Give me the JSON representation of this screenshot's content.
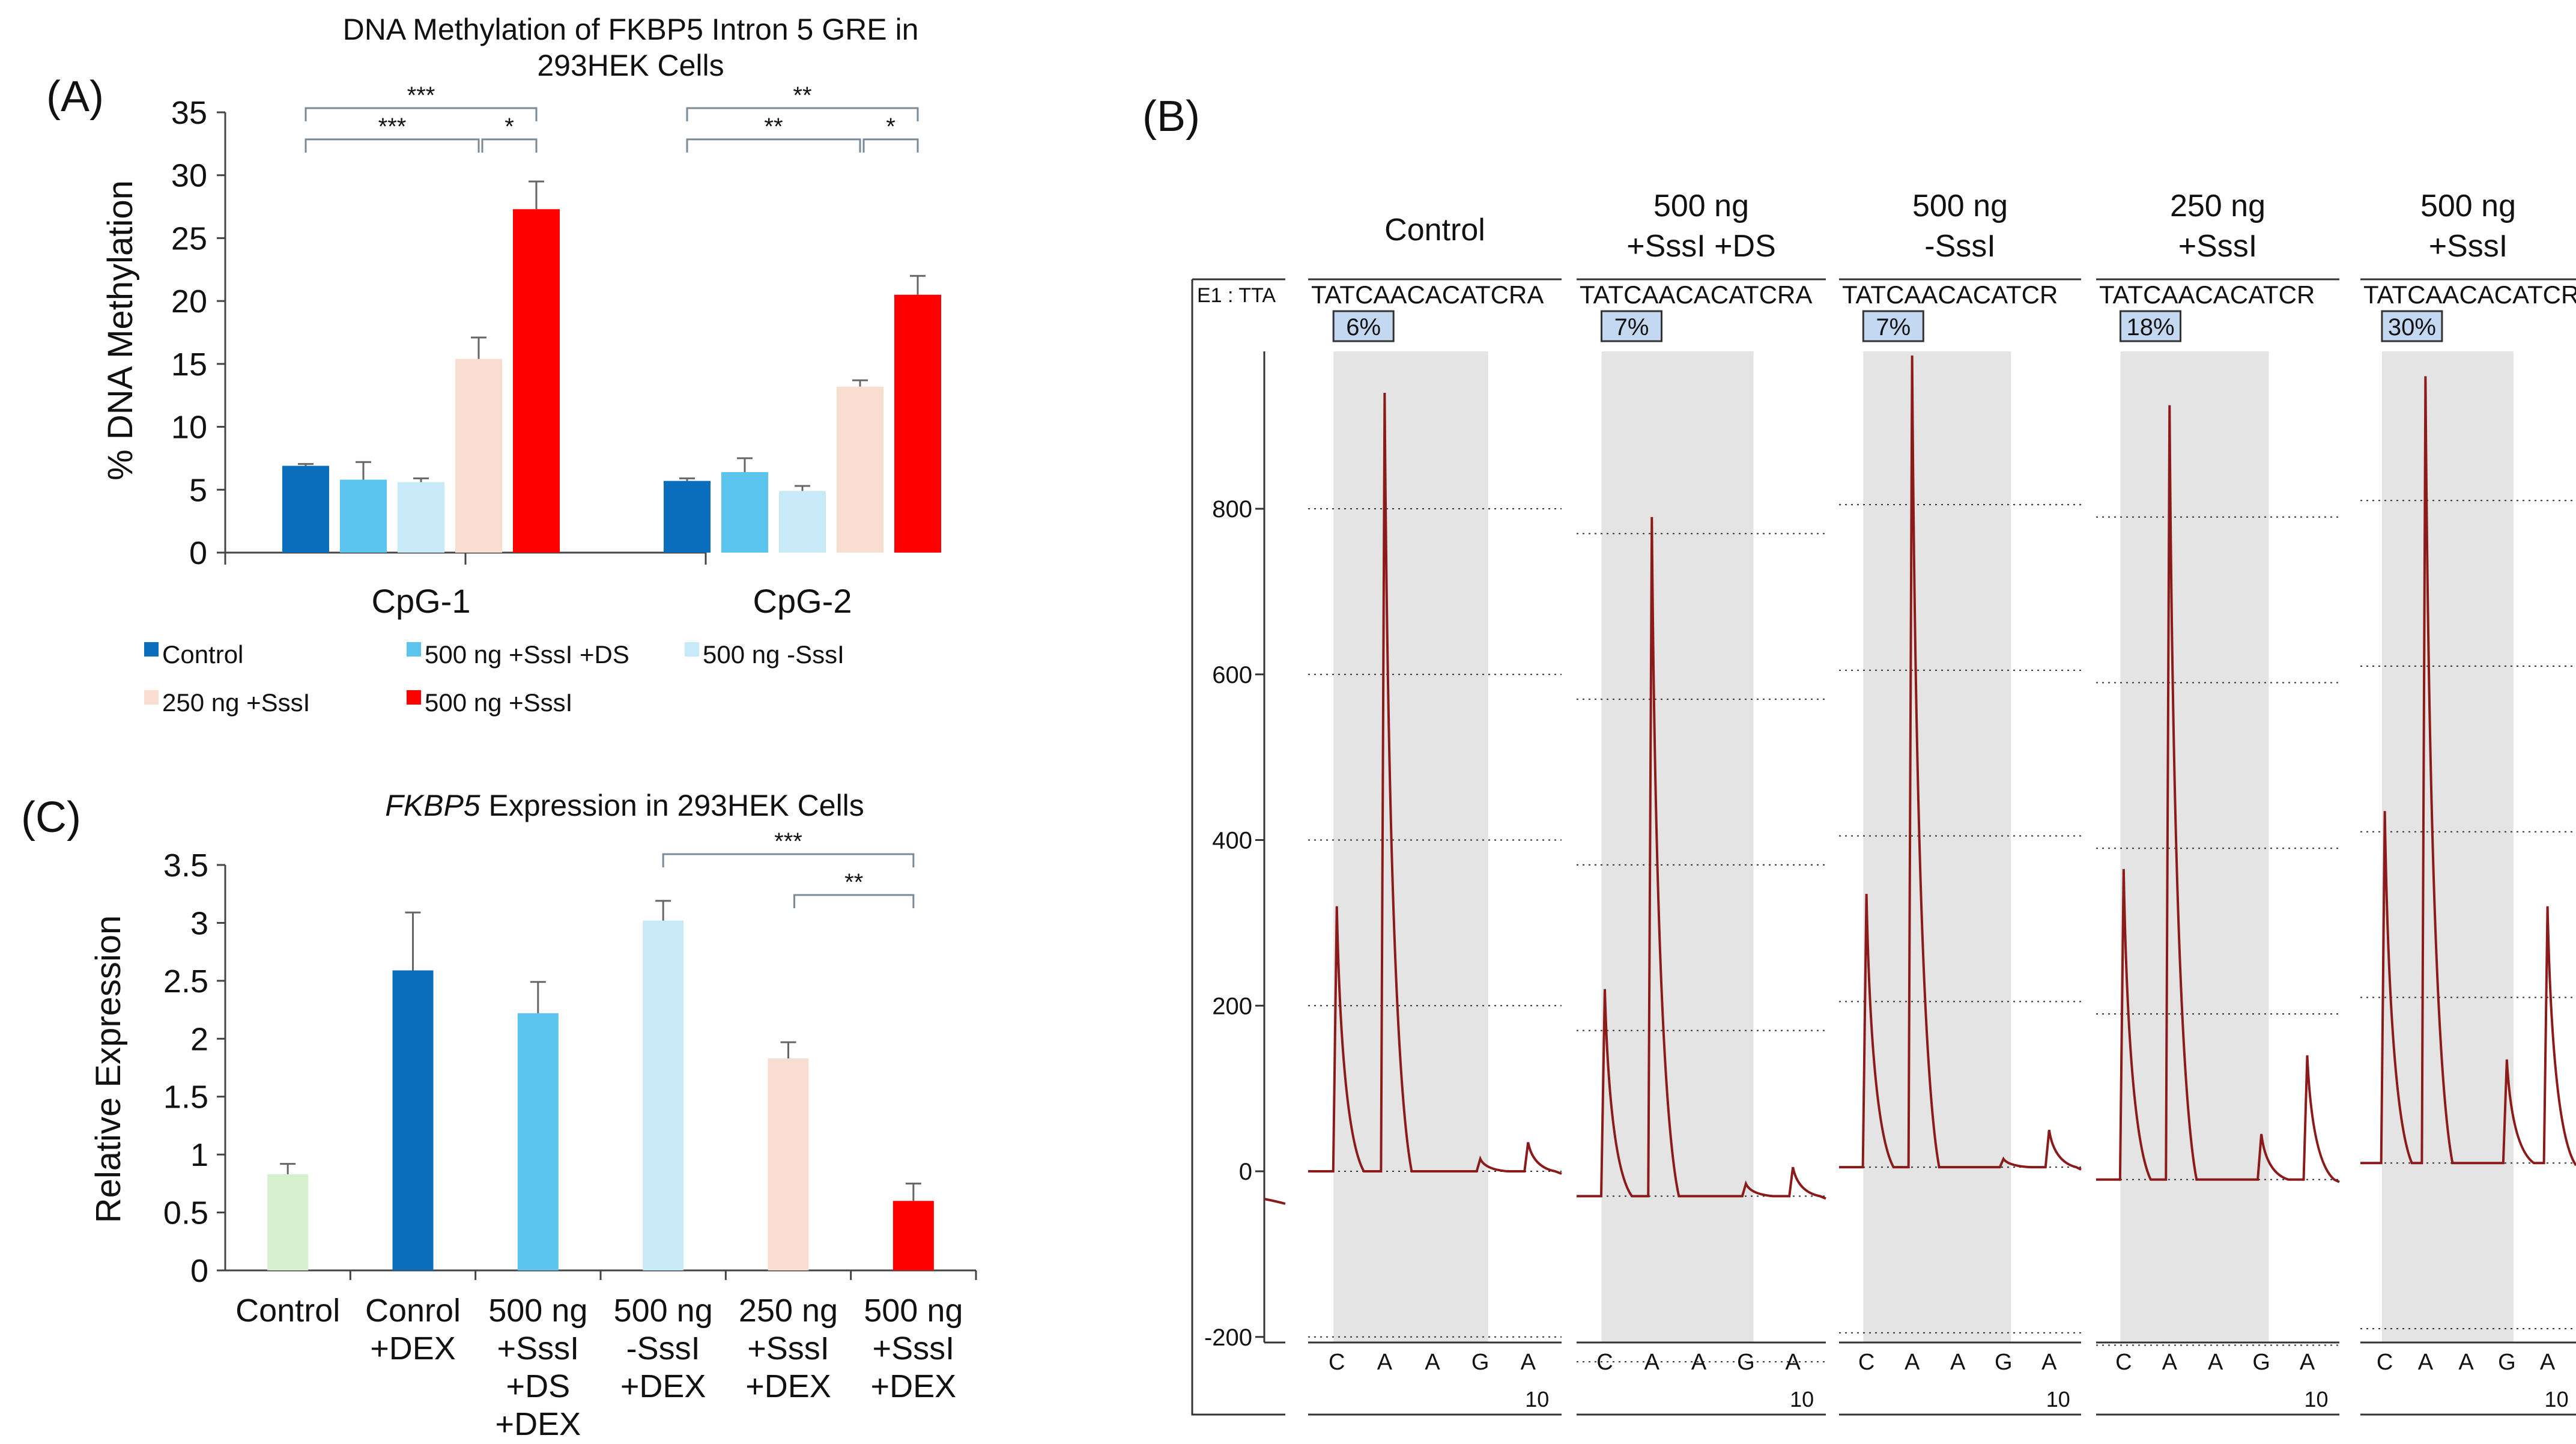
{
  "colors": {
    "control": "#0A6EBD",
    "sssi_ds": "#5BC5F0",
    "minus_sssi": "#C8EAF8",
    "ng250": "#F8DDD0",
    "ng500": "#FF0000",
    "ctrl_c": "#D5EFCF",
    "trace": "#8B1A1A",
    "shade": "#E4E4E4",
    "pct_box": "#C5D8F2"
  },
  "chart_data": [
    {
      "id": "A",
      "type": "bar",
      "panel_label": "(A)",
      "title_line1": "DNA Methylation of FKBP5 Intron 5 GRE in",
      "title_line2": "293HEK Cells",
      "ylabel": "% DNA Methylation",
      "ylim": [
        0,
        35
      ],
      "yticks": [
        "0",
        "5",
        "10",
        "15",
        "20",
        "25",
        "30",
        "35"
      ],
      "categories": [
        "CpG-1",
        "CpG-2"
      ],
      "series": [
        {
          "name": "Control",
          "color_key": "control",
          "values": [
            6.9,
            5.7
          ],
          "errors": [
            0.15,
            0.2
          ]
        },
        {
          "name": "500 ng +SssI +DS",
          "color_key": "sssi_ds",
          "values": [
            5.8,
            6.4
          ],
          "errors": [
            1.4,
            1.1
          ]
        },
        {
          "name": "500 ng -SssI",
          "color_key": "minus_sssi",
          "values": [
            5.6,
            4.9
          ],
          "errors": [
            0.3,
            0.4
          ]
        },
        {
          "name": "250 ng +SssI",
          "color_key": "ng250",
          "values": [
            15.4,
            13.2
          ],
          "errors": [
            1.7,
            0.5
          ]
        },
        {
          "name": "500 ng +SssI",
          "color_key": "ng500",
          "values": [
            27.3,
            20.5
          ],
          "errors": [
            2.2,
            1.5
          ]
        }
      ],
      "significance": [
        "***",
        "***",
        "*",
        "**",
        "**",
        "*"
      ]
    },
    {
      "id": "C",
      "type": "bar",
      "panel_label": "(C)",
      "title_italic": "FKBP5",
      "title_rest": " Expression in 293HEK Cells",
      "ylabel": "Relative Expression",
      "ylim": [
        0,
        3.5
      ],
      "yticks": [
        "0",
        "0.5",
        "1",
        "1.5",
        "2",
        "2.5",
        "3",
        "3.5"
      ],
      "categories": [
        [
          "Control"
        ],
        [
          "Conrol",
          "+DEX"
        ],
        [
          "500 ng",
          "+SssI",
          "+DS",
          "+DEX"
        ],
        [
          "500 ng",
          "-SssI",
          "+DEX"
        ],
        [
          "250 ng",
          "+SssI",
          "+DEX"
        ],
        [
          "500 ng",
          "+SssI",
          "+DEX"
        ]
      ],
      "color_keys": [
        "ctrl_c",
        "control",
        "sssi_ds",
        "minus_sssi",
        "ng250",
        "ng500"
      ],
      "values": [
        0.83,
        2.59,
        2.22,
        3.02,
        1.83,
        0.6
      ],
      "errors": [
        0.09,
        0.5,
        0.27,
        0.17,
        0.14,
        0.15
      ],
      "significance": [
        "***",
        "**"
      ]
    },
    {
      "id": "B",
      "type": "line",
      "panel_label": "(B)",
      "axis_header": "E1 : TTA",
      "ylim": [
        -200,
        1000
      ],
      "yticks": [
        "-200",
        "0",
        "200",
        "400",
        "600",
        "800"
      ],
      "x_bases": [
        "C",
        "A",
        "A",
        "G",
        "A"
      ],
      "x_number": "10",
      "panels": [
        {
          "title": [
            "Control"
          ],
          "seq": "TATCAACACATCRA",
          "pct": "6%",
          "peaks": [
            320,
            940,
            0,
            15,
            35
          ],
          "baseline": 0
        },
        {
          "title": [
            "500 ng",
            "+SssI +DS"
          ],
          "seq": "TATCAACACATCRA",
          "pct": "7%",
          "peaks": [
            250,
            820,
            0,
            15,
            35
          ],
          "baseline": -30
        },
        {
          "title": [
            "500 ng",
            "-SssI"
          ],
          "seq": "TATCAACACATCR",
          "pct": "7%",
          "peaks": [
            330,
            980,
            0,
            10,
            45
          ],
          "baseline": 5
        },
        {
          "title": [
            "250 ng",
            "+SssI"
          ],
          "seq": "TATCAACACATCR",
          "pct": "18%",
          "peaks": [
            375,
            935,
            0,
            55,
            150
          ],
          "baseline": -10
        },
        {
          "title": [
            "500 ng",
            "+SssI"
          ],
          "seq": "TATCAACACATCR",
          "pct": "30%",
          "peaks": [
            425,
            950,
            0,
            125,
            310
          ],
          "baseline": 10
        }
      ]
    }
  ]
}
